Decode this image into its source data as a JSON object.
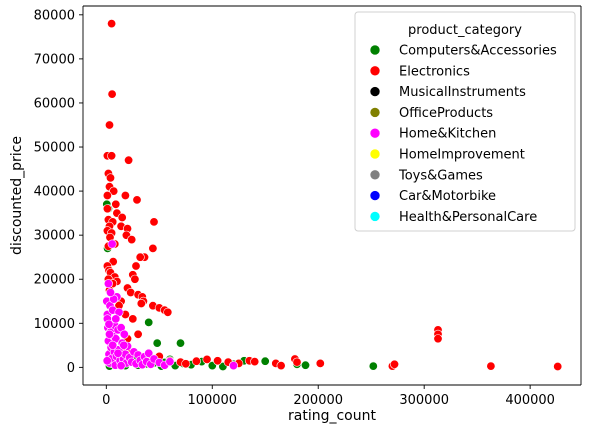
{
  "chart_data": {
    "type": "scatter",
    "xlabel": "rating_count",
    "ylabel": "discounted_price",
    "xlim": [
      -22000,
      448000
    ],
    "ylim": [
      -4000,
      82000
    ],
    "xticks": [
      0,
      100000,
      200000,
      300000,
      400000
    ],
    "yticks": [
      0,
      10000,
      20000,
      30000,
      40000,
      50000,
      60000,
      70000,
      80000
    ],
    "grid": false,
    "legend": {
      "title": "product_category",
      "placement": "top-right",
      "entries": [
        {
          "name": "Computers&Accessories",
          "color": "#008000"
        },
        {
          "name": "Electronics",
          "color": "#ff0000"
        },
        {
          "name": "MusicalInstruments",
          "color": "#000000"
        },
        {
          "name": "OfficeProducts",
          "color": "#808000"
        },
        {
          "name": "Home&Kitchen",
          "color": "#ff00ff"
        },
        {
          "name": "HomeImprovement",
          "color": "#ffff00"
        },
        {
          "name": "Toys&Games",
          "color": "#808080"
        },
        {
          "name": "Car&Motorbike",
          "color": "#0000ff"
        },
        {
          "name": "Health&PersonalCare",
          "color": "#00ffff"
        }
      ]
    },
    "series": [
      {
        "name": "Computers&Accessories",
        "points": [
          [
            500,
            37000
          ],
          [
            1200,
            27000
          ],
          [
            2000,
            36000
          ],
          [
            3000,
            300
          ],
          [
            5000,
            900
          ],
          [
            8000,
            1500
          ],
          [
            12000,
            2500
          ],
          [
            15000,
            800
          ],
          [
            20000,
            3000
          ],
          [
            25000,
            1200
          ],
          [
            30000,
            500
          ],
          [
            35000,
            2000
          ],
          [
            40000,
            10200
          ],
          [
            45000,
            1000
          ],
          [
            48000,
            5500
          ],
          [
            52000,
            300
          ],
          [
            60000,
            1800
          ],
          [
            70000,
            5500
          ],
          [
            72000,
            900
          ],
          [
            80000,
            600
          ],
          [
            90000,
            1300
          ],
          [
            100000,
            400
          ],
          [
            110000,
            200
          ],
          [
            120000,
            700
          ],
          [
            130000,
            1500
          ],
          [
            150000,
            1400
          ],
          [
            180000,
            700
          ],
          [
            188000,
            500
          ],
          [
            252000,
            300
          ],
          [
            10000,
            600
          ],
          [
            18000,
            400
          ],
          [
            28000,
            2200
          ],
          [
            38000,
            800
          ],
          [
            55000,
            1100
          ],
          [
            65000,
            400
          ]
        ]
      },
      {
        "name": "Electronics",
        "points": [
          [
            5000,
            78000
          ],
          [
            5500,
            62000
          ],
          [
            3000,
            55000
          ],
          [
            1000,
            48000
          ],
          [
            5000,
            48000
          ],
          [
            21000,
            47000
          ],
          [
            2000,
            44000
          ],
          [
            4000,
            43000
          ],
          [
            3000,
            41000
          ],
          [
            7000,
            40000
          ],
          [
            1000,
            39000
          ],
          [
            18000,
            39000
          ],
          [
            29000,
            38000
          ],
          [
            9000,
            37000
          ],
          [
            1000,
            36000
          ],
          [
            10000,
            35000
          ],
          [
            15000,
            34000
          ],
          [
            2000,
            33500
          ],
          [
            6000,
            33000
          ],
          [
            45000,
            33000
          ],
          [
            3000,
            32000
          ],
          [
            14000,
            32000
          ],
          [
            20000,
            31500
          ],
          [
            1000,
            31000
          ],
          [
            5000,
            30500
          ],
          [
            19000,
            30000
          ],
          [
            3500,
            29500
          ],
          [
            24000,
            29000
          ],
          [
            8000,
            28000
          ],
          [
            2000,
            27500
          ],
          [
            44000,
            27000
          ],
          [
            36000,
            25000
          ],
          [
            32000,
            25000
          ],
          [
            6500,
            24000
          ],
          [
            1000,
            23000
          ],
          [
            28000,
            23000
          ],
          [
            2500,
            22000
          ],
          [
            4000,
            21500
          ],
          [
            25000,
            21000
          ],
          [
            8000,
            20500
          ],
          [
            2000,
            20000
          ],
          [
            27000,
            20000
          ],
          [
            10000,
            19500
          ],
          [
            6000,
            19000
          ],
          [
            20000,
            18000
          ],
          [
            3000,
            17500
          ],
          [
            23000,
            17000
          ],
          [
            30000,
            16500
          ],
          [
            34000,
            16000
          ],
          [
            35000,
            15000
          ],
          [
            33000,
            14500
          ],
          [
            44000,
            14000
          ],
          [
            50000,
            13500
          ],
          [
            55000,
            13000
          ],
          [
            58000,
            12500
          ],
          [
            14000,
            15000
          ],
          [
            12000,
            14000
          ],
          [
            18000,
            12000
          ],
          [
            25000,
            11000
          ],
          [
            4000,
            10000
          ],
          [
            30000,
            7500
          ],
          [
            20000,
            6500
          ],
          [
            16000,
            4000
          ],
          [
            22000,
            3500
          ],
          [
            40000,
            3000
          ],
          [
            50000,
            2500
          ],
          [
            60000,
            1500
          ],
          [
            70000,
            1200
          ],
          [
            75000,
            800
          ],
          [
            85000,
            1400
          ],
          [
            95000,
            1800
          ],
          [
            105000,
            1500
          ],
          [
            115000,
            1200
          ],
          [
            125000,
            900
          ],
          [
            135000,
            1500
          ],
          [
            140000,
            1300
          ],
          [
            160000,
            900
          ],
          [
            165000,
            400
          ],
          [
            178000,
            1900
          ],
          [
            180000,
            1200
          ],
          [
            202000,
            900
          ],
          [
            270000,
            300
          ],
          [
            272000,
            700
          ],
          [
            313000,
            8500
          ],
          [
            313000,
            7500
          ],
          [
            313000,
            6500
          ],
          [
            363000,
            300
          ],
          [
            426000,
            200
          ]
        ]
      },
      {
        "name": "Home&Kitchen",
        "points": [
          [
            500,
            15000
          ],
          [
            1000,
            12000
          ],
          [
            1500,
            9000
          ],
          [
            2000,
            6000
          ],
          [
            2500,
            3000
          ],
          [
            3000,
            1000
          ],
          [
            3500,
            14000
          ],
          [
            4000,
            8000
          ],
          [
            4500,
            4500
          ],
          [
            5000,
            2000
          ],
          [
            5500,
            28000
          ],
          [
            6000,
            13000
          ],
          [
            6500,
            10500
          ],
          [
            7000,
            7000
          ],
          [
            7500,
            3500
          ],
          [
            8000,
            9500
          ],
          [
            8500,
            500
          ],
          [
            9000,
            6500
          ],
          [
            9500,
            2500
          ],
          [
            10000,
            16000
          ],
          [
            11000,
            8500
          ],
          [
            12000,
            4000
          ],
          [
            13000,
            1500
          ],
          [
            14000,
            9000
          ],
          [
            15000,
            5500
          ],
          [
            16000,
            2000
          ],
          [
            17000,
            7500
          ],
          [
            18000,
            3000
          ],
          [
            19000,
            1000
          ],
          [
            20000,
            4800
          ],
          [
            22000,
            2200
          ],
          [
            24000,
            1200
          ],
          [
            26000,
            3500
          ],
          [
            28000,
            800
          ],
          [
            30000,
            2800
          ],
          [
            32000,
            1600
          ],
          [
            34000,
            600
          ],
          [
            36000,
            2400
          ],
          [
            38000,
            1300
          ],
          [
            40000,
            3200
          ],
          [
            42000,
            700
          ],
          [
            45000,
            1900
          ],
          [
            50000,
            1100
          ],
          [
            55000,
            500
          ],
          [
            60000,
            1300
          ],
          [
            120000,
            400
          ],
          [
            2000,
            19000
          ],
          [
            1000,
            11000
          ],
          [
            3000,
            7500
          ],
          [
            6000,
            5000
          ],
          [
            800,
            1500
          ],
          [
            12000,
            12500
          ],
          [
            7000,
            15500
          ],
          [
            4000,
            17000
          ],
          [
            2500,
            9800
          ],
          [
            9000,
            11000
          ],
          [
            11000,
            3200
          ],
          [
            14000,
            400
          ],
          [
            16500,
            5000
          ]
        ]
      }
    ]
  }
}
